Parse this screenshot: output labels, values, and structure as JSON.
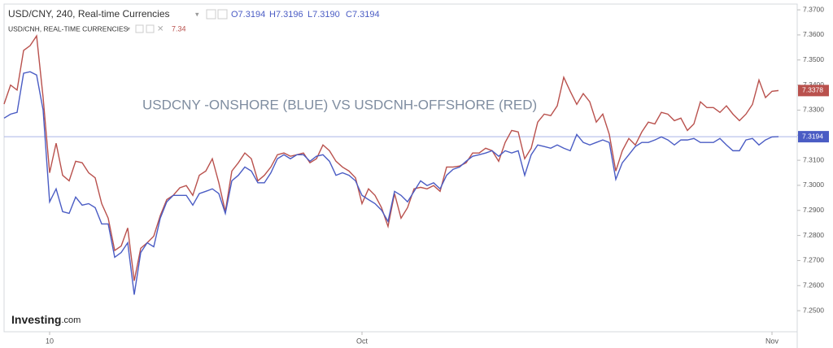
{
  "chart_data": {
    "type": "line",
    "annotation": "USDCNY -ONSHORE (BLUE) VS USDCNH-OFFSHORE (RED)",
    "header": {
      "ohlc": [
        "O7.3194",
        "H7.3196",
        "L7.3190",
        "C7.3194"
      ],
      "second_value": "7.34"
    },
    "logo": {
      "name": "Investing",
      "suffix": ".com"
    },
    "categories": [
      null,
      null,
      null,
      null,
      null,
      null,
      null,
      "10",
      null,
      null,
      null,
      null,
      null,
      null,
      null,
      null,
      null,
      null,
      null,
      null,
      null,
      null,
      null,
      null,
      null,
      null,
      null,
      null,
      null,
      null,
      null,
      null,
      null,
      null,
      null,
      null,
      null,
      null,
      null,
      null,
      null,
      null,
      null,
      null,
      null,
      null,
      null,
      null,
      null,
      null,
      null,
      null,
      null,
      null,
      null,
      "Oct",
      null,
      null,
      null,
      null,
      null,
      null,
      null,
      null,
      null,
      null,
      null,
      null,
      null,
      null,
      null,
      null,
      null,
      null,
      null,
      null,
      null,
      null,
      null,
      null,
      null,
      null,
      null,
      null,
      null,
      null,
      null,
      null,
      null,
      null,
      null,
      null,
      null,
      null,
      null,
      null,
      null,
      null,
      null,
      null,
      null,
      null,
      null,
      null,
      null,
      null,
      null,
      null,
      null,
      null,
      null,
      null,
      null,
      null,
      null,
      null,
      null,
      null,
      "Nov",
      null
    ],
    "series": [
      {
        "name": "USD/CNH, REAL-TIME CURRENCIES",
        "color": "#b9514d",
        "values": [
          7.3324,
          7.34,
          7.338,
          7.3538,
          7.3557,
          7.3596,
          7.335,
          7.305,
          7.3168,
          7.304,
          7.3018,
          7.3096,
          7.309,
          7.305,
          7.303,
          7.2927,
          7.2869,
          7.274,
          7.2758,
          7.283,
          7.2619,
          7.2749,
          7.2771,
          7.2797,
          7.2879,
          7.2943,
          7.296,
          7.299,
          7.2999,
          7.296,
          7.304,
          7.3057,
          7.3106,
          7.301,
          7.2895,
          7.3057,
          7.309,
          7.3129,
          7.3106,
          7.3018,
          7.304,
          7.3073,
          7.3122,
          7.3129,
          7.3116,
          7.3122,
          7.3129,
          7.309,
          7.3106,
          7.3161,
          7.3138,
          7.3096,
          7.3073,
          7.3057,
          7.303,
          7.2927,
          7.2986,
          7.296,
          7.2911,
          7.2836,
          7.2967,
          7.2869,
          7.2911,
          7.2986,
          7.2992,
          7.2986,
          7.2999,
          7.2976,
          7.3073,
          7.3073,
          7.3077,
          7.309,
          7.3129,
          7.3129,
          7.3148,
          7.3138,
          7.3096,
          7.3171,
          7.3219,
          7.3213,
          7.3106,
          7.3148,
          7.3252,
          7.3284,
          7.3278,
          7.3317,
          7.3431,
          7.3375,
          7.3323,
          7.3366,
          7.3333,
          7.3252,
          7.3284,
          7.3203,
          7.3057,
          7.3138,
          7.3187,
          7.3161,
          7.3213,
          7.3252,
          7.3245,
          7.3291,
          7.3284,
          7.3258,
          7.3268,
          7.3219,
          7.3245,
          7.3333,
          7.331,
          7.331,
          7.3291,
          7.3317,
          7.3284,
          7.3258,
          7.3284,
          7.3323,
          7.342,
          7.335,
          7.3375,
          7.3378
        ]
      },
      {
        "name": "USD/CNY, 240, Real-time Currencies",
        "color": "#4a5cc4",
        "values": [
          7.3268,
          7.3284,
          7.3291,
          7.3447,
          7.3453,
          7.344,
          7.33,
          7.2934,
          7.2986,
          7.2895,
          7.2888,
          7.2953,
          7.2921,
          7.2927,
          7.2911,
          7.2846,
          7.2846,
          7.2713,
          7.2732,
          7.2771,
          7.2564,
          7.2732,
          7.2771,
          7.2755,
          7.2869,
          7.2934,
          7.296,
          7.296,
          7.296,
          7.2921,
          7.2967,
          7.2976,
          7.2986,
          7.2967,
          7.2888,
          7.3018,
          7.304,
          7.3073,
          7.3057,
          7.301,
          7.301,
          7.305,
          7.3106,
          7.3122,
          7.3106,
          7.3122,
          7.3122,
          7.3096,
          7.3116,
          7.3122,
          7.3096,
          7.304,
          7.305,
          7.304,
          7.3018,
          7.296,
          7.2943,
          7.2927,
          7.2901,
          7.2856,
          7.2976,
          7.296,
          7.2934,
          7.2976,
          7.3018,
          7.2999,
          7.301,
          7.2986,
          7.304,
          7.3064,
          7.3073,
          7.3096,
          7.3116,
          7.3122,
          7.3129,
          7.3138,
          7.3116,
          7.3138,
          7.3129,
          7.3138,
          7.304,
          7.3122,
          7.3161,
          7.3155,
          7.3148,
          7.3161,
          7.3148,
          7.3138,
          7.3203,
          7.3171,
          7.3161,
          7.3171,
          7.3181,
          7.3171,
          7.3024,
          7.309,
          7.3122,
          7.3155,
          7.3171,
          7.3171,
          7.3181,
          7.3193,
          7.3181,
          7.3161,
          7.3181,
          7.3181,
          7.3187,
          7.3171,
          7.3171,
          7.3171,
          7.3187,
          7.3161,
          7.3138,
          7.3138,
          7.3181,
          7.3187,
          7.3161,
          7.3181,
          7.3193,
          7.3194
        ]
      }
    ],
    "ylim": [
      7.2416,
      7.3723
    ],
    "yticks": [
      {
        "value": 7.25,
        "label": "7.2500"
      },
      {
        "value": 7.26,
        "label": "7.2600"
      },
      {
        "value": 7.27,
        "label": "7.2700"
      },
      {
        "value": 7.28,
        "label": "7.2800"
      },
      {
        "value": 7.29,
        "label": "7.2900"
      },
      {
        "value": 7.3,
        "label": "7.3000"
      },
      {
        "value": 7.31,
        "label": "7.3100"
      },
      {
        "value": 7.32,
        "label": "7.3200"
      },
      {
        "value": 7.33,
        "label": "7.3300"
      },
      {
        "value": 7.34,
        "label": "7.3400"
      },
      {
        "value": 7.35,
        "label": "7.3500"
      },
      {
        "value": 7.36,
        "label": "7.3600"
      },
      {
        "value": 7.37,
        "label": "7.3700"
      }
    ],
    "grid": false
  }
}
